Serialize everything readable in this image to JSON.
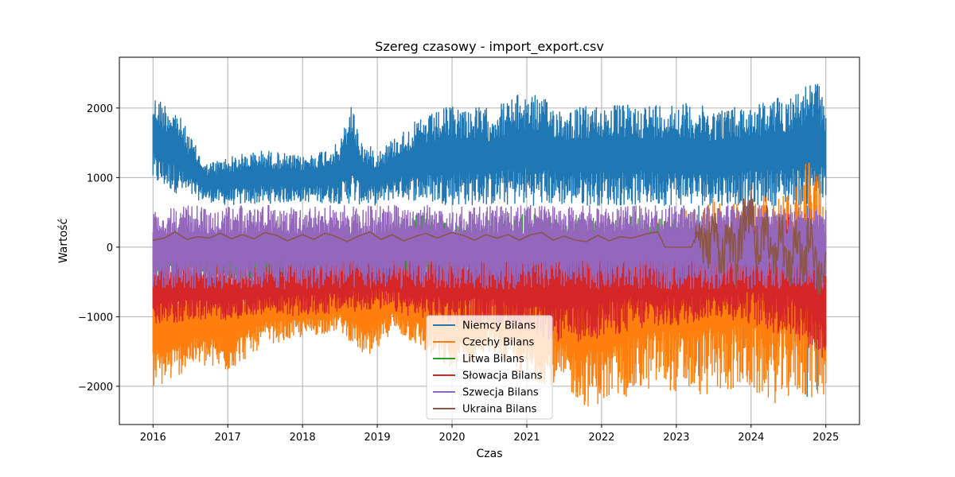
{
  "chart_data": {
    "type": "line",
    "title": "Szereg czasowy - import_export.csv",
    "xlabel": "Czas",
    "ylabel": "Wartość",
    "xlim": [
      2015.55,
      2025.45
    ],
    "ylim": [
      -2550,
      2730
    ],
    "xticks": [
      2016,
      2017,
      2018,
      2019,
      2020,
      2021,
      2022,
      2023,
      2024,
      2025
    ],
    "xtick_labels": [
      "2016",
      "2017",
      "2018",
      "2019",
      "2020",
      "2021",
      "2022",
      "2023",
      "2024",
      "2025"
    ],
    "yticks": [
      -2000,
      -1000,
      0,
      1000,
      2000
    ],
    "ytick_labels": [
      "−2000",
      "−1000",
      "0",
      "1000",
      "2000"
    ],
    "grid": true,
    "legend_position": "bottom-center",
    "x_range": [
      2016.0,
      2025.0
    ],
    "series": [
      {
        "name": "Niemcy Bilans",
        "color": "#1f77b4",
        "style": "band",
        "upper": [
          [
            2016.0,
            2200
          ],
          [
            2016.3,
            2000
          ],
          [
            2016.5,
            1600
          ],
          [
            2016.7,
            1200
          ],
          [
            2017.0,
            1300
          ],
          [
            2017.5,
            1400
          ],
          [
            2018.0,
            1300
          ],
          [
            2018.5,
            1500
          ],
          [
            2018.65,
            2100
          ],
          [
            2018.8,
            1500
          ],
          [
            2019.0,
            1400
          ],
          [
            2019.25,
            1600
          ],
          [
            2019.5,
            1800
          ],
          [
            2020.0,
            2050
          ],
          [
            2020.5,
            2000
          ],
          [
            2021.0,
            2250
          ],
          [
            2021.5,
            2000
          ],
          [
            2022.0,
            2050
          ],
          [
            2022.5,
            2050
          ],
          [
            2023.0,
            2100
          ],
          [
            2023.5,
            2000
          ],
          [
            2024.0,
            2050
          ],
          [
            2024.5,
            2200
          ],
          [
            2024.85,
            2400
          ],
          [
            2025.0,
            2200
          ]
        ],
        "lower": [
          [
            2016.0,
            900
          ],
          [
            2016.5,
            700
          ],
          [
            2017.0,
            600
          ],
          [
            2018.0,
            650
          ],
          [
            2019.0,
            600
          ],
          [
            2019.25,
            700
          ],
          [
            2020.0,
            600
          ],
          [
            2021.0,
            600
          ],
          [
            2022.0,
            600
          ],
          [
            2023.0,
            600
          ],
          [
            2024.0,
            600
          ],
          [
            2025.0,
            600
          ]
        ],
        "spikes_down": [
          [
            2023.1,
            -1500
          ],
          [
            2023.3,
            -1850
          ],
          [
            2023.9,
            -1450
          ],
          [
            2024.3,
            -1600
          ],
          [
            2024.75,
            -2150
          ],
          [
            2024.88,
            -2050
          ]
        ]
      },
      {
        "name": "Czechy Bilans",
        "color": "#ff7f0e",
        "style": "band",
        "upper": [
          [
            2016.0,
            -300
          ],
          [
            2016.5,
            -500
          ],
          [
            2017.0,
            -400
          ],
          [
            2018.0,
            -500
          ],
          [
            2019.0,
            -400
          ],
          [
            2019.5,
            -300
          ],
          [
            2020.0,
            -500
          ],
          [
            2020.5,
            -500
          ],
          [
            2021.0,
            -400
          ],
          [
            2022.0,
            100
          ],
          [
            2022.5,
            300
          ],
          [
            2023.0,
            500
          ],
          [
            2023.5,
            700
          ],
          [
            2024.0,
            700
          ],
          [
            2024.5,
            800
          ],
          [
            2024.85,
            1500
          ],
          [
            2025.0,
            600
          ]
        ],
        "lower": [
          [
            2016.0,
            -2050
          ],
          [
            2016.3,
            -1900
          ],
          [
            2016.5,
            -1700
          ],
          [
            2017.0,
            -1800
          ],
          [
            2017.5,
            -1400
          ],
          [
            2018.0,
            -1300
          ],
          [
            2018.5,
            -1200
          ],
          [
            2018.9,
            -1650
          ],
          [
            2019.2,
            -1200
          ],
          [
            2019.5,
            -1400
          ],
          [
            2020.0,
            -1800
          ],
          [
            2020.5,
            -1500
          ],
          [
            2021.0,
            -1900
          ],
          [
            2021.5,
            -2050
          ],
          [
            2021.8,
            -2300
          ],
          [
            2022.2,
            -2200
          ],
          [
            2022.8,
            -2000
          ],
          [
            2023.0,
            -2100
          ],
          [
            2023.4,
            -2150
          ],
          [
            2023.8,
            -2050
          ],
          [
            2024.0,
            -2100
          ],
          [
            2024.3,
            -2250
          ],
          [
            2024.6,
            -2150
          ],
          [
            2024.9,
            -2200
          ],
          [
            2025.0,
            -2150
          ]
        ]
      },
      {
        "name": "Litwa Bilans",
        "color": "#2ca02c",
        "style": "band",
        "upper": [
          [
            2016.0,
            100
          ],
          [
            2016.5,
            0
          ],
          [
            2017.0,
            200
          ],
          [
            2017.5,
            100
          ],
          [
            2018.0,
            50
          ],
          [
            2019.0,
            300
          ],
          [
            2019.65,
            500
          ],
          [
            2020.0,
            300
          ],
          [
            2021.0,
            500
          ],
          [
            2021.5,
            400
          ],
          [
            2022.0,
            450
          ],
          [
            2023.0,
            400
          ],
          [
            2023.3,
            200
          ],
          [
            2023.5,
            150
          ]
        ],
        "lower": [
          [
            2016.0,
            -400
          ],
          [
            2016.5,
            -300
          ],
          [
            2017.0,
            -500
          ],
          [
            2018.0,
            -400
          ],
          [
            2019.0,
            -500
          ],
          [
            2020.0,
            -550
          ],
          [
            2021.0,
            -600
          ],
          [
            2022.0,
            -550
          ],
          [
            2023.0,
            -550
          ],
          [
            2023.3,
            -450
          ],
          [
            2023.5,
            -400
          ]
        ]
      },
      {
        "name": "Słowacja Bilans",
        "color": "#d62728",
        "style": "band",
        "upper": [
          [
            2016.0,
            -200
          ],
          [
            2016.5,
            -100
          ],
          [
            2017.0,
            -300
          ],
          [
            2017.5,
            -200
          ],
          [
            2018.0,
            -100
          ],
          [
            2019.0,
            0
          ],
          [
            2019.5,
            -50
          ],
          [
            2020.0,
            0
          ],
          [
            2020.5,
            100
          ],
          [
            2021.0,
            0
          ],
          [
            2022.0,
            200
          ],
          [
            2022.5,
            300
          ],
          [
            2023.0,
            100
          ],
          [
            2023.5,
            0
          ],
          [
            2024.0,
            300
          ],
          [
            2024.5,
            500
          ],
          [
            2025.0,
            100
          ]
        ],
        "lower": [
          [
            2016.0,
            -1150
          ],
          [
            2016.5,
            -1050
          ],
          [
            2017.0,
            -1050
          ],
          [
            2017.5,
            -950
          ],
          [
            2018.0,
            -1000
          ],
          [
            2019.0,
            -900
          ],
          [
            2020.0,
            -1100
          ],
          [
            2020.5,
            -1150
          ],
          [
            2021.0,
            -1250
          ],
          [
            2021.5,
            -1400
          ],
          [
            2022.0,
            -1300
          ],
          [
            2022.5,
            -1200
          ],
          [
            2023.0,
            -1150
          ],
          [
            2023.5,
            -1000
          ],
          [
            2024.0,
            -1100
          ],
          [
            2024.3,
            -1250
          ],
          [
            2024.6,
            -1300
          ],
          [
            2025.0,
            -1650
          ]
        ]
      },
      {
        "name": "Szwecja Bilans",
        "color": "#9467bd",
        "style": "band",
        "upper": [
          [
            2016.0,
            600
          ],
          [
            2025.0,
            600
          ]
        ],
        "lower": [
          [
            2016.0,
            -600
          ],
          [
            2025.0,
            -600
          ]
        ]
      },
      {
        "name": "Ukraina Bilans",
        "color": "#8c564b",
        "style": "line",
        "points": [
          [
            2016.0,
            100
          ],
          [
            2016.15,
            130
          ],
          [
            2016.3,
            220
          ],
          [
            2016.45,
            110
          ],
          [
            2016.6,
            150
          ],
          [
            2016.75,
            130
          ],
          [
            2016.9,
            200
          ],
          [
            2017.05,
            120
          ],
          [
            2017.2,
            180
          ],
          [
            2017.35,
            120
          ],
          [
            2017.5,
            210
          ],
          [
            2017.65,
            170
          ],
          [
            2017.8,
            90
          ],
          [
            2018.0,
            180
          ],
          [
            2018.15,
            110
          ],
          [
            2018.3,
            200
          ],
          [
            2018.45,
            150
          ],
          [
            2018.6,
            80
          ],
          [
            2018.75,
            160
          ],
          [
            2018.9,
            220
          ],
          [
            2019.05,
            110
          ],
          [
            2019.2,
            180
          ],
          [
            2019.35,
            90
          ],
          [
            2019.5,
            150
          ],
          [
            2019.65,
            200
          ],
          [
            2019.8,
            130
          ],
          [
            2020.0,
            210
          ],
          [
            2020.15,
            170
          ],
          [
            2020.3,
            100
          ],
          [
            2020.45,
            180
          ],
          [
            2020.6,
            130
          ],
          [
            2020.75,
            180
          ],
          [
            2020.9,
            100
          ],
          [
            2021.05,
            180
          ],
          [
            2021.2,
            210
          ],
          [
            2021.35,
            100
          ],
          [
            2021.5,
            160
          ],
          [
            2021.65,
            100
          ],
          [
            2021.8,
            80
          ],
          [
            2021.95,
            170
          ],
          [
            2022.1,
            90
          ],
          [
            2022.25,
            150
          ],
          [
            2022.4,
            130
          ],
          [
            2022.6,
            190
          ],
          [
            2022.75,
            220
          ],
          [
            2022.85,
            0
          ],
          [
            2023.2,
            0
          ],
          [
            2023.3,
            250
          ],
          [
            2023.4,
            -100
          ],
          [
            2023.5,
            300
          ],
          [
            2023.6,
            -150
          ],
          [
            2023.7,
            200
          ],
          [
            2023.8,
            -250
          ],
          [
            2023.9,
            350
          ],
          [
            2024.0,
            600
          ],
          [
            2024.1,
            -200
          ],
          [
            2024.2,
            500
          ],
          [
            2024.3,
            -350
          ],
          [
            2024.4,
            300
          ],
          [
            2024.5,
            -400
          ],
          [
            2024.6,
            100
          ],
          [
            2024.7,
            -300
          ],
          [
            2024.8,
            350
          ],
          [
            2024.9,
            -450
          ],
          [
            2025.0,
            -200
          ]
        ],
        "noise_from": 2023.25,
        "noise_amp": 350
      }
    ]
  }
}
